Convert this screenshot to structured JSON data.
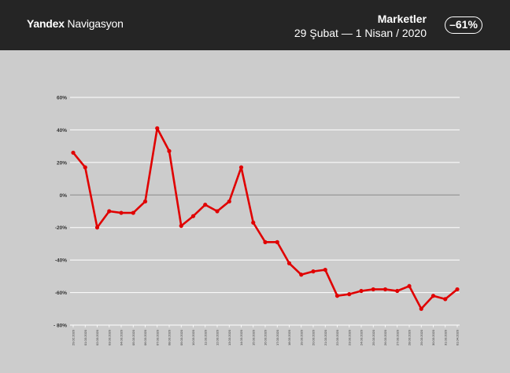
{
  "header": {
    "brand_bold": "Yandex",
    "brand_light": " Navigasyon",
    "title": "Marketler",
    "subtitle": "29 Şubat  —  1 Nisan / 2020",
    "badge": "–61%"
  },
  "colors": {
    "header_bg": "#252525",
    "plot_bg": "#cccccc",
    "line": "#e00000",
    "zero_line": "#8a8a8a",
    "grid": "#ffffff"
  },
  "chart_data": {
    "type": "line",
    "title": "",
    "xlabel": "",
    "ylabel": "",
    "ylim": [
      -80,
      60
    ],
    "yticks": [
      60,
      40,
      20,
      0,
      -20,
      -40,
      -60,
      -80
    ],
    "ytick_labels": [
      "60%",
      "40%",
      "20%",
      "0%",
      "-20%",
      "-40%",
      "-60%",
      "- 80%"
    ],
    "grid": true,
    "legend": "none",
    "x": [
      "29.02.2020",
      "01.03.2020",
      "02.03.2020",
      "03.03.2020",
      "04.03.2020",
      "05.03.2020",
      "06.03.2020",
      "07.03.2020",
      "08.03.2020",
      "09.03.2020",
      "10.03.2020",
      "11.03.2020",
      "12.03.2020",
      "13.03.2020",
      "14.03.2020",
      "15.03.2020",
      "16.03.2020",
      "17.03.2020",
      "18.03.2020",
      "19.03.2020",
      "20.03.2020",
      "21.03.2020",
      "22.03.2020",
      "23.03.2020",
      "24.03.2020",
      "25.03.2020",
      "26.03.2020",
      "27.03.2020",
      "28.03.2020",
      "29.03.2020",
      "30.03.2020",
      "31.03.2020",
      "01.04.2020"
    ],
    "series": [
      {
        "values": [
          26,
          17,
          -20,
          -10,
          -11,
          -11,
          -4,
          41,
          27,
          -19,
          -13,
          -6,
          -10,
          -4,
          17,
          -17,
          -29,
          -29,
          -42,
          -49,
          -47,
          -46,
          -62,
          -61,
          -59,
          -58,
          -58,
          -59,
          -56,
          -70,
          -62,
          -64,
          -58
        ]
      }
    ]
  }
}
